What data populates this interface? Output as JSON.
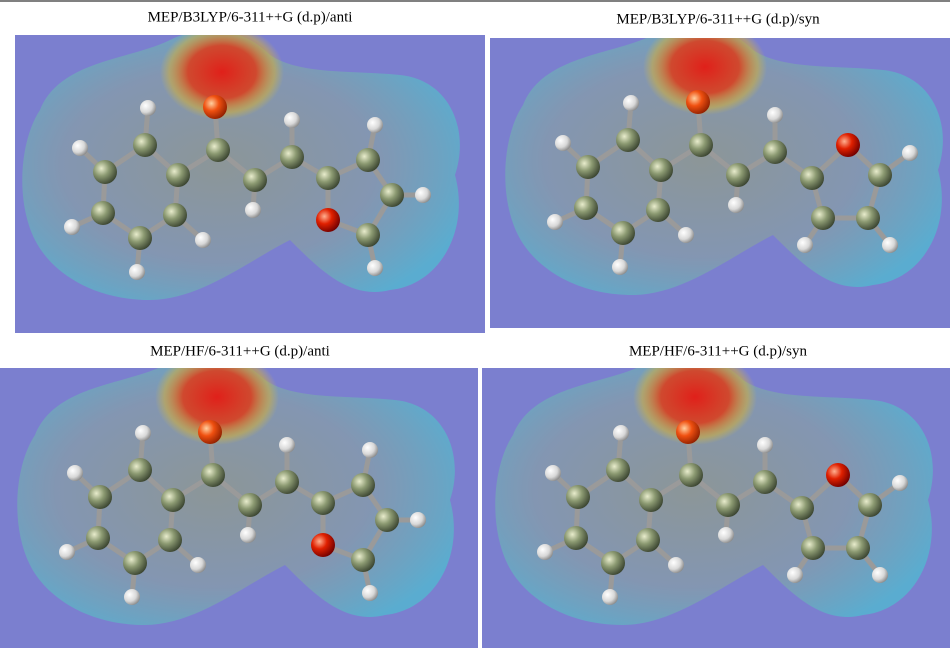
{
  "panels": [
    {
      "title": "MEP/B3LYP/6-311++G (d.p)/anti"
    },
    {
      "title": "MEP/B3LYP/6-311++G (d.p)/syn"
    },
    {
      "title": "MEP/HF/6-311++G (d.p)/anti"
    },
    {
      "title": "MEP/HF/6-311++G (d.p)/syn"
    }
  ]
}
